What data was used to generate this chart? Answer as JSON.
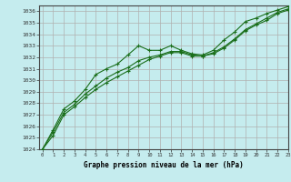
{
  "title": "Graphe pression niveau de la mer (hPa)",
  "background_color": "#c5ecee",
  "grid_color": "#b0b0b0",
  "line_color": "#1a6e1a",
  "xlim": [
    -0.3,
    23
  ],
  "ylim": [
    1024,
    1036.5
  ],
  "yticks": [
    1024,
    1025,
    1026,
    1027,
    1028,
    1029,
    1030,
    1031,
    1032,
    1033,
    1034,
    1035,
    1036
  ],
  "xticks": [
    0,
    1,
    2,
    3,
    4,
    5,
    6,
    7,
    8,
    9,
    10,
    11,
    12,
    13,
    14,
    15,
    16,
    17,
    18,
    19,
    20,
    21,
    22,
    23
  ],
  "series1": [
    1024.0,
    1025.7,
    1027.5,
    1028.2,
    1029.2,
    1030.5,
    1031.0,
    1031.4,
    1032.2,
    1033.0,
    1032.6,
    1032.6,
    1033.0,
    1032.6,
    1032.3,
    1032.2,
    1032.6,
    1033.5,
    1034.2,
    1035.1,
    1035.4,
    1035.8,
    1036.1,
    1036.4
  ],
  "series2": [
    1024.0,
    1025.5,
    1027.2,
    1027.9,
    1028.8,
    1029.5,
    1030.2,
    1030.7,
    1031.1,
    1031.7,
    1032.0,
    1032.2,
    1032.5,
    1032.5,
    1032.2,
    1032.1,
    1032.4,
    1032.9,
    1033.6,
    1034.4,
    1034.9,
    1035.4,
    1035.9,
    1036.2
  ],
  "series3": [
    1024.0,
    1025.2,
    1027.0,
    1027.7,
    1028.5,
    1029.2,
    1029.8,
    1030.3,
    1030.8,
    1031.3,
    1031.8,
    1032.1,
    1032.4,
    1032.4,
    1032.1,
    1032.1,
    1032.3,
    1032.8,
    1033.5,
    1034.3,
    1034.8,
    1035.2,
    1035.8,
    1036.1
  ]
}
